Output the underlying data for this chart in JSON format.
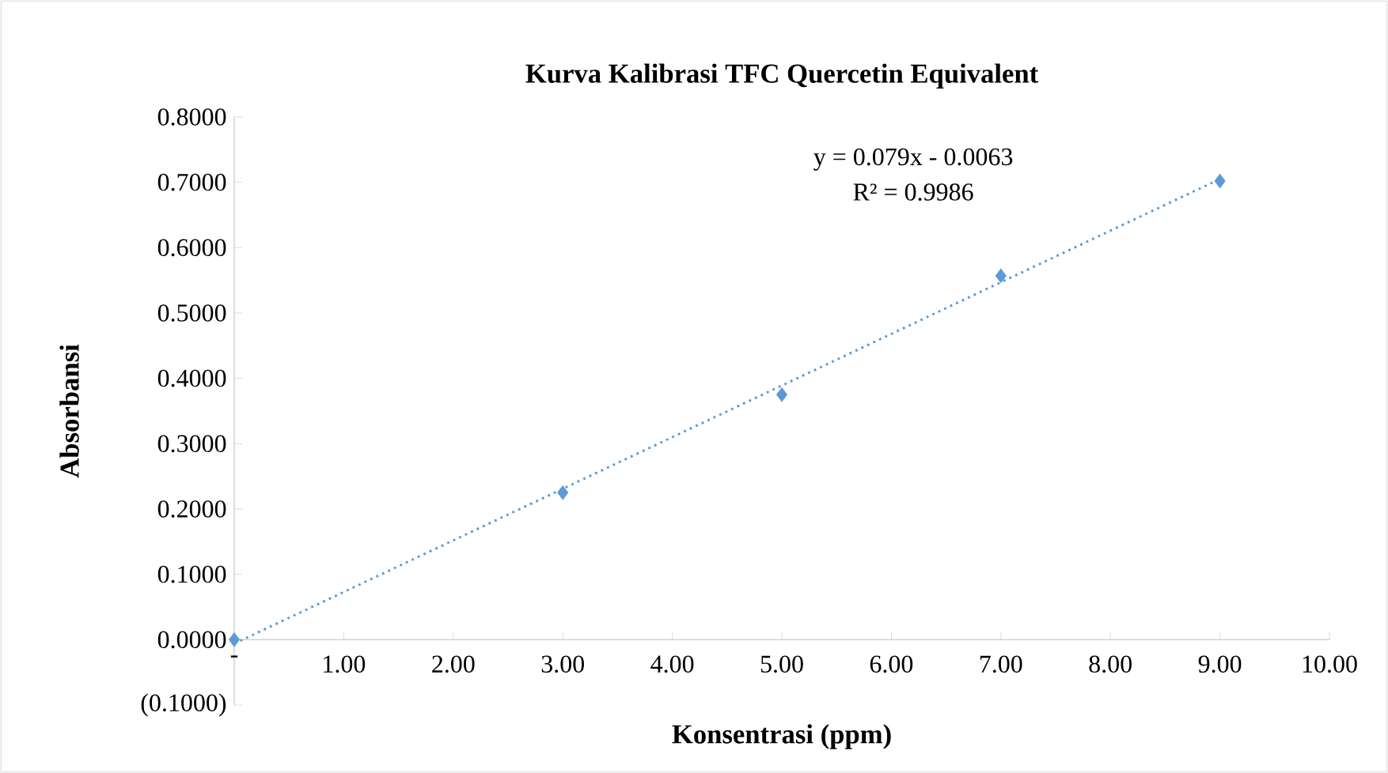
{
  "chart_data": {
    "type": "scatter",
    "title": "Kurva Kalibrasi TFC Quercetin Equivalent",
    "xlabel": "Konsentrasi (ppm)",
    "ylabel": "Absorbansi",
    "annotations": [
      "y = 0.079x - 0.0063",
      "R² = 0.9986"
    ],
    "series": [
      {
        "color": "#5b9bd5",
        "x": [
          0,
          3,
          5,
          7,
          9
        ],
        "values": [
          0.0,
          0.225,
          0.375,
          0.557,
          0.702
        ],
        "marker": "diamond"
      },
      {
        "type": "line",
        "color": "#5b9bd5",
        "x": [
          0,
          9
        ],
        "values": [
          -0.006,
          0.705
        ],
        "line_style": "dotted",
        "marker": "none"
      }
    ],
    "xlim": [
      0,
      10
    ],
    "ylim": [
      -0.1,
      0.8
    ],
    "xticks": [
      {
        "value": 0,
        "label": "-"
      },
      {
        "value": 1,
        "label": "1.00"
      },
      {
        "value": 2,
        "label": "2.00"
      },
      {
        "value": 3,
        "label": "3.00"
      },
      {
        "value": 4,
        "label": "4.00"
      },
      {
        "value": 5,
        "label": "5.00"
      },
      {
        "value": 6,
        "label": "6.00"
      },
      {
        "value": 7,
        "label": "7.00"
      },
      {
        "value": 8,
        "label": "8.00"
      },
      {
        "value": 9,
        "label": "9.00"
      },
      {
        "value": 10,
        "label": "10.00"
      }
    ],
    "yticks": [
      {
        "value": -0.1,
        "label": "(0.1000)"
      },
      {
        "value": 0,
        "label": "0.0000"
      },
      {
        "value": 0.1,
        "label": "0.1000"
      },
      {
        "value": 0.2,
        "label": "0.2000"
      },
      {
        "value": 0.3,
        "label": "0.3000"
      },
      {
        "value": 0.4,
        "label": "0.4000"
      },
      {
        "value": 0.5,
        "label": "0.5000"
      },
      {
        "value": 0.6,
        "label": "0.6000"
      },
      {
        "value": 0.7,
        "label": "0.7000"
      },
      {
        "value": 0.8,
        "label": "0.8000"
      }
    ],
    "grid": false
  }
}
